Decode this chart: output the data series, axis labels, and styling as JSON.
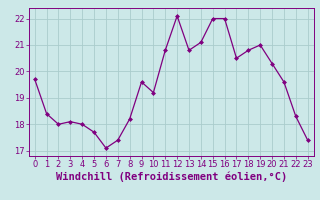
{
  "x": [
    0,
    1,
    2,
    3,
    4,
    5,
    6,
    7,
    8,
    9,
    10,
    11,
    12,
    13,
    14,
    15,
    16,
    17,
    18,
    19,
    20,
    21,
    22,
    23
  ],
  "y": [
    19.7,
    18.4,
    18.0,
    18.1,
    18.0,
    17.7,
    17.1,
    17.4,
    18.2,
    19.6,
    19.2,
    20.8,
    22.1,
    20.8,
    21.1,
    22.0,
    22.0,
    20.5,
    20.8,
    21.0,
    20.3,
    19.6,
    18.3,
    17.4
  ],
  "line_color": "#800080",
  "marker_color": "#800080",
  "bg_color": "#cce8e8",
  "grid_color": "#aacccc",
  "xlabel": "Windchill (Refroidissement éolien,°C)",
  "ylim": [
    16.8,
    22.4
  ],
  "xlim": [
    -0.5,
    23.5
  ],
  "yticks": [
    17,
    18,
    19,
    20,
    21,
    22
  ],
  "xticks": [
    0,
    1,
    2,
    3,
    4,
    5,
    6,
    7,
    8,
    9,
    10,
    11,
    12,
    13,
    14,
    15,
    16,
    17,
    18,
    19,
    20,
    21,
    22,
    23
  ],
  "axis_color": "#800080",
  "tick_color": "#800080",
  "label_fontsize": 7.5,
  "tick_fontsize": 6.0
}
